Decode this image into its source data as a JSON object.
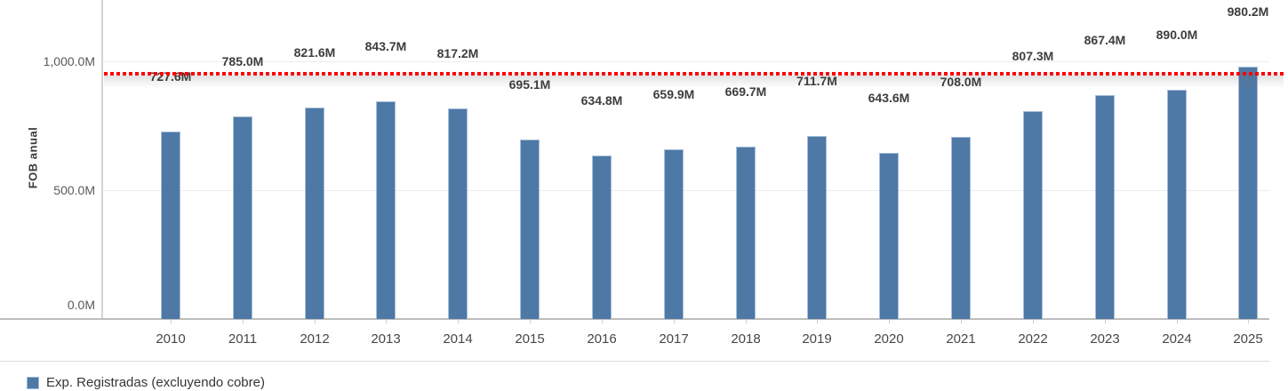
{
  "chart_data": {
    "type": "bar",
    "title": "",
    "xlabel": "",
    "ylabel": "FOB anual",
    "categories": [
      "2010",
      "2011",
      "2012",
      "2013",
      "2014",
      "2015",
      "2016",
      "2017",
      "2018",
      "2019",
      "2020",
      "2021",
      "2022",
      "2023",
      "2024",
      "2025"
    ],
    "series": [
      {
        "name": "Exp. Registradas (excluyendo cobre)",
        "color": "#4e78a6",
        "values": [
          727.6,
          785.0,
          821.6,
          843.7,
          817.2,
          695.1,
          634.8,
          659.9,
          669.7,
          711.7,
          643.6,
          708.0,
          807.3,
          867.4,
          890.0,
          980.2
        ],
        "labels": [
          "727.6M",
          "785.0M",
          "821.6M",
          "843.7M",
          "817.2M",
          "695.1M",
          "634.8M",
          "659.9M",
          "669.7M",
          "711.7M",
          "643.6M",
          "708.0M",
          "807.3M",
          "867.4M",
          "890.0M",
          "980.2M"
        ]
      }
    ],
    "y_axis": {
      "ticks": [
        {
          "value": 0,
          "label": "0.0M"
        },
        {
          "value": 500,
          "label": "500.0M"
        },
        {
          "value": 1000,
          "label": "1,000.0M"
        }
      ],
      "range": [
        0,
        1238
      ]
    },
    "reference_line": {
      "value": 960,
      "estimated": true,
      "color": "#fb0006",
      "style": "dotted"
    },
    "grid": "horizontal-faint",
    "legend": {
      "position": "bottom-left",
      "items": [
        {
          "label": "Exp. Registradas (excluyendo cobre)",
          "color": "#4e78a6"
        }
      ]
    },
    "colors": {
      "bar": "#4e78a6",
      "bar_border": "#a6c0d8",
      "reference": "#fb0006"
    }
  }
}
